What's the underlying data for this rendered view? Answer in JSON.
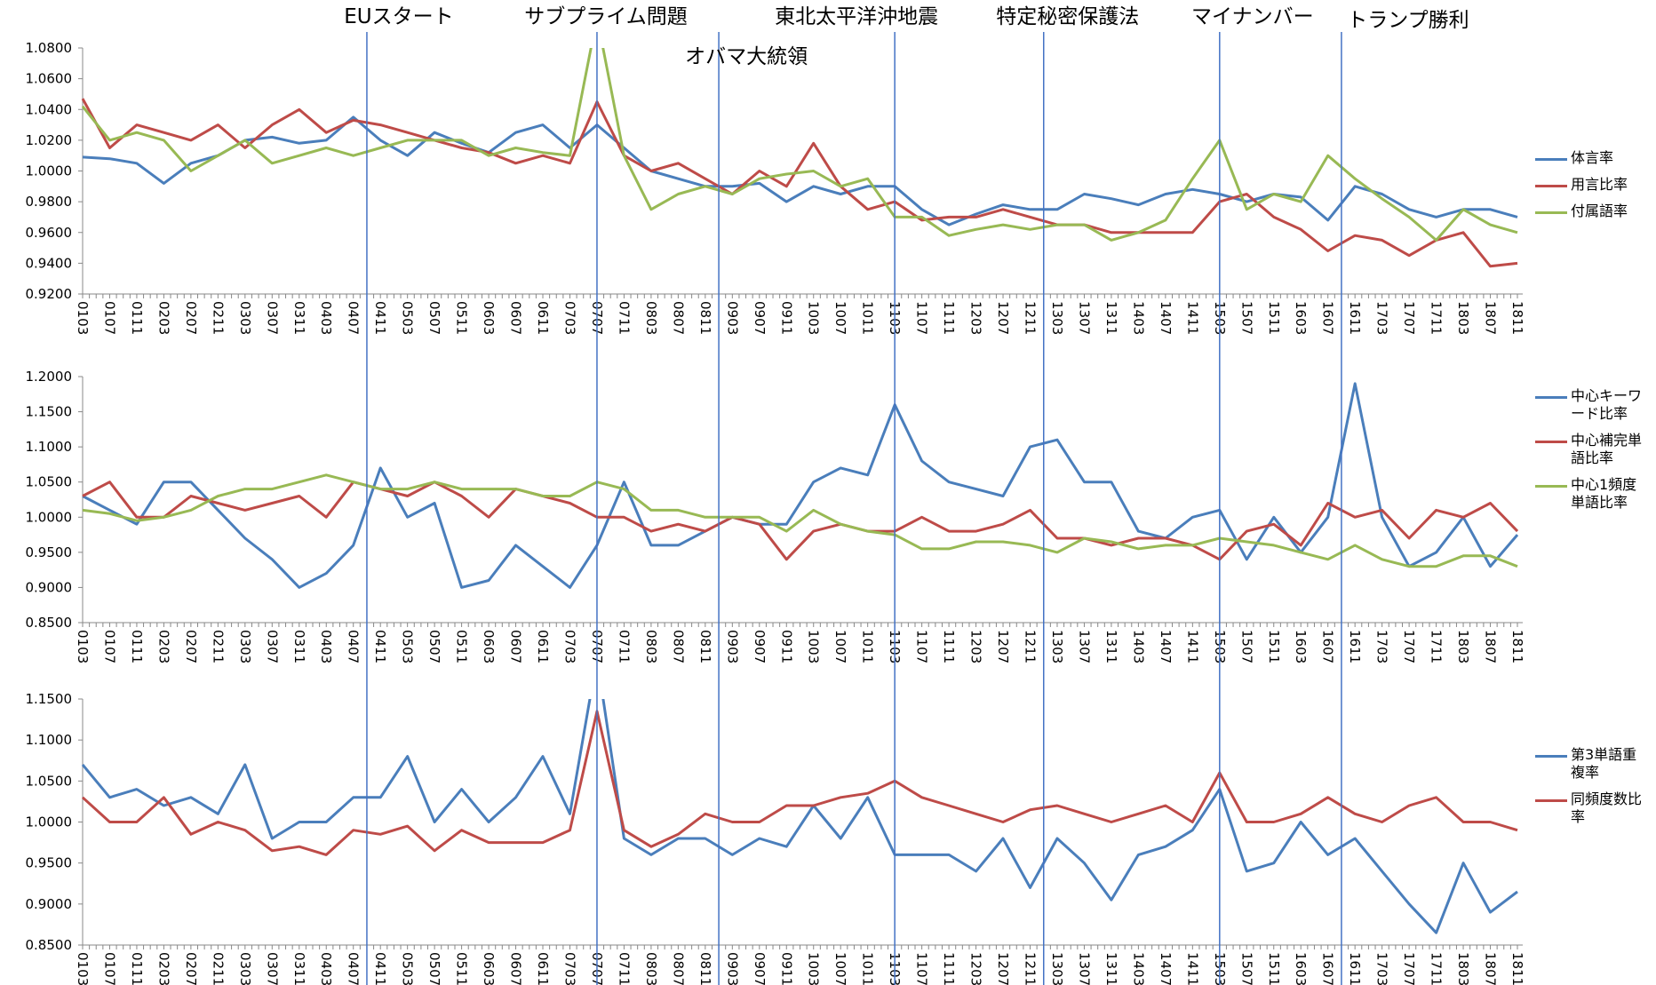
{
  "chart_data": [
    {
      "type": "line",
      "categories": [
        "0103",
        "0107",
        "0111",
        "0203",
        "0207",
        "0211",
        "0303",
        "0307",
        "0311",
        "0403",
        "0407",
        "0411",
        "0503",
        "0507",
        "0511",
        "0603",
        "0607",
        "0611",
        "0703",
        "0707",
        "0711",
        "0803",
        "0807",
        "0811",
        "0903",
        "0907",
        "0911",
        "1003",
        "1007",
        "1011",
        "1103",
        "1107",
        "1111",
        "1203",
        "1207",
        "1211",
        "1303",
        "1307",
        "1311",
        "1403",
        "1407",
        "1411",
        "1503",
        "1507",
        "1511",
        "1603",
        "1607",
        "1611",
        "1703",
        "1707",
        "1711",
        "1803",
        "1807",
        "1811"
      ],
      "ylim": [
        0.92,
        1.08
      ],
      "yticks": [
        {
          "value": 0.92,
          "label": "0.9200"
        },
        {
          "value": 0.94,
          "label": "0.9400"
        },
        {
          "value": 0.96,
          "label": "0.9600"
        },
        {
          "value": 0.98,
          "label": "0.9800"
        },
        {
          "value": 1.0,
          "label": "1.0000"
        },
        {
          "value": 1.02,
          "label": "1.0200"
        },
        {
          "value": 1.04,
          "label": "1.0400"
        },
        {
          "value": 1.06,
          "label": "1.0600"
        },
        {
          "value": 1.08,
          "label": "1.0800"
        }
      ],
      "grid": false,
      "series": [
        {
          "name": "体言率",
          "color": "#4a7ebb",
          "values": [
            1.009,
            1.008,
            1.005,
            0.992,
            1.005,
            1.01,
            1.02,
            1.022,
            1.018,
            1.02,
            1.035,
            1.02,
            1.01,
            1.025,
            1.018,
            1.012,
            1.025,
            1.03,
            1.015,
            1.03,
            1.015,
            1.0,
            0.995,
            0.99,
            0.99,
            0.992,
            0.98,
            0.99,
            0.985,
            0.99,
            0.99,
            0.975,
            0.965,
            0.972,
            0.978,
            0.975,
            0.975,
            0.985,
            0.982,
            0.978,
            0.985,
            0.988,
            0.985,
            0.98,
            0.985,
            0.983,
            0.968,
            0.99,
            0.985,
            0.975,
            0.97,
            0.975,
            0.975,
            0.97
          ]
        },
        {
          "name": "用言比率",
          "color": "#be4b48",
          "values": [
            1.047,
            1.015,
            1.03,
            1.025,
            1.02,
            1.03,
            1.015,
            1.03,
            1.04,
            1.025,
            1.033,
            1.03,
            1.025,
            1.02,
            1.015,
            1.012,
            1.005,
            1.01,
            1.005,
            1.045,
            1.01,
            1.0,
            1.005,
            0.995,
            0.985,
            1.0,
            0.99,
            1.018,
            0.99,
            0.975,
            0.98,
            0.968,
            0.97,
            0.97,
            0.975,
            0.97,
            0.965,
            0.965,
            0.96,
            0.96,
            0.96,
            0.96,
            0.98,
            0.985,
            0.97,
            0.962,
            0.948,
            0.958,
            0.955,
            0.945,
            0.955,
            0.96,
            0.938,
            0.94
          ]
        },
        {
          "name": "付属語率",
          "color": "#98b954",
          "values": [
            1.042,
            1.02,
            1.025,
            1.02,
            1.0,
            1.01,
            1.02,
            1.005,
            1.01,
            1.015,
            1.01,
            1.015,
            1.02,
            1.02,
            1.02,
            1.01,
            1.015,
            1.012,
            1.01,
            1.1,
            1.01,
            0.975,
            0.985,
            0.99,
            0.985,
            0.995,
            0.998,
            1.0,
            0.99,
            0.995,
            0.97,
            0.97,
            0.958,
            0.962,
            0.965,
            0.962,
            0.965,
            0.965,
            0.955,
            0.96,
            0.968,
            0.995,
            1.02,
            0.975,
            0.985,
            0.98,
            1.01,
            0.995,
            0.982,
            0.97,
            0.955,
            0.975,
            0.965,
            0.96
          ]
        }
      ]
    },
    {
      "type": "line",
      "categories": [
        "0103",
        "0107",
        "0111",
        "0203",
        "0207",
        "0211",
        "0303",
        "0307",
        "0311",
        "0403",
        "0407",
        "0411",
        "0503",
        "0507",
        "0511",
        "0603",
        "0607",
        "0611",
        "0703",
        "0707",
        "0711",
        "0803",
        "0807",
        "0811",
        "0903",
        "0907",
        "0911",
        "1003",
        "1007",
        "1011",
        "1103",
        "1107",
        "1111",
        "1203",
        "1207",
        "1211",
        "1303",
        "1307",
        "1311",
        "1403",
        "1407",
        "1411",
        "1503",
        "1507",
        "1511",
        "1603",
        "1607",
        "1611",
        "1703",
        "1707",
        "1711",
        "1803",
        "1807",
        "1811"
      ],
      "ylim": [
        0.85,
        1.2
      ],
      "yticks": [
        {
          "value": 0.85,
          "label": "0.8500"
        },
        {
          "value": 0.9,
          "label": "0.9000"
        },
        {
          "value": 0.95,
          "label": "0.9500"
        },
        {
          "value": 1.0,
          "label": "1.0000"
        },
        {
          "value": 1.05,
          "label": "1.0500"
        },
        {
          "value": 1.1,
          "label": "1.1000"
        },
        {
          "value": 1.15,
          "label": "1.1500"
        },
        {
          "value": 1.2,
          "label": "1.2000"
        }
      ],
      "grid": false,
      "series": [
        {
          "name": "中心キーワード比率",
          "color": "#4a7ebb",
          "values": [
            1.03,
            1.01,
            0.99,
            1.05,
            1.05,
            1.01,
            0.97,
            0.94,
            0.9,
            0.92,
            0.96,
            1.07,
            1.0,
            1.02,
            0.9,
            0.91,
            0.96,
            0.93,
            0.9,
            0.96,
            1.05,
            0.96,
            0.96,
            0.98,
            1.0,
            0.99,
            0.99,
            1.05,
            1.07,
            1.06,
            1.16,
            1.08,
            1.05,
            1.04,
            1.03,
            1.1,
            1.11,
            1.05,
            1.05,
            0.98,
            0.97,
            1.0,
            1.01,
            0.94,
            1.0,
            0.95,
            1.0,
            1.19,
            1.0,
            0.93,
            0.95,
            1.0,
            0.93,
            0.975
          ]
        },
        {
          "name": "中心補完単語比率",
          "color": "#be4b48",
          "values": [
            1.03,
            1.05,
            1.0,
            1.0,
            1.03,
            1.02,
            1.01,
            1.02,
            1.03,
            1.0,
            1.05,
            1.04,
            1.03,
            1.05,
            1.03,
            1.0,
            1.04,
            1.03,
            1.02,
            1.0,
            1.0,
            0.98,
            0.99,
            0.98,
            1.0,
            0.99,
            0.94,
            0.98,
            0.99,
            0.98,
            0.98,
            1.0,
            0.98,
            0.98,
            0.99,
            1.01,
            0.97,
            0.97,
            0.96,
            0.97,
            0.97,
            0.96,
            0.94,
            0.98,
            0.99,
            0.96,
            1.02,
            1.0,
            1.01,
            0.97,
            1.01,
            1.0,
            1.02,
            0.98
          ]
        },
        {
          "name": "中心1頻度単語比率",
          "color": "#98b954",
          "values": [
            1.01,
            1.005,
            0.995,
            1.0,
            1.01,
            1.03,
            1.04,
            1.04,
            1.05,
            1.06,
            1.05,
            1.04,
            1.04,
            1.05,
            1.04,
            1.04,
            1.04,
            1.03,
            1.03,
            1.05,
            1.04,
            1.01,
            1.01,
            1.0,
            1.0,
            1.0,
            0.98,
            1.01,
            0.99,
            0.98,
            0.975,
            0.955,
            0.955,
            0.965,
            0.965,
            0.96,
            0.95,
            0.97,
            0.965,
            0.955,
            0.96,
            0.96,
            0.97,
            0.965,
            0.96,
            0.95,
            0.94,
            0.96,
            0.94,
            0.93,
            0.93,
            0.945,
            0.945,
            0.93
          ]
        }
      ]
    },
    {
      "type": "line",
      "categories": [
        "0103",
        "0107",
        "0111",
        "0203",
        "0207",
        "0211",
        "0303",
        "0307",
        "0311",
        "0403",
        "0407",
        "0411",
        "0503",
        "0507",
        "0511",
        "0603",
        "0607",
        "0611",
        "0703",
        "0707",
        "0711",
        "0803",
        "0807",
        "0811",
        "0903",
        "0907",
        "0911",
        "1003",
        "1007",
        "1011",
        "1103",
        "1107",
        "1111",
        "1203",
        "1207",
        "1211",
        "1303",
        "1307",
        "1311",
        "1403",
        "1407",
        "1411",
        "1503",
        "1507",
        "1511",
        "1603",
        "1607",
        "1611",
        "1703",
        "1707",
        "1711",
        "1803",
        "1807",
        "1811"
      ],
      "ylim": [
        0.85,
        1.15
      ],
      "yticks": [
        {
          "value": 0.85,
          "label": "0.8500"
        },
        {
          "value": 0.9,
          "label": "0.9000"
        },
        {
          "value": 0.95,
          "label": "0.9500"
        },
        {
          "value": 1.0,
          "label": "1.0000"
        },
        {
          "value": 1.05,
          "label": "1.0500"
        },
        {
          "value": 1.1,
          "label": "1.1000"
        },
        {
          "value": 1.15,
          "label": "1.1500"
        }
      ],
      "grid": false,
      "series": [
        {
          "name": "第3単語重複率",
          "color": "#4a7ebb",
          "values": [
            1.07,
            1.03,
            1.04,
            1.02,
            1.03,
            1.01,
            1.07,
            0.98,
            1.0,
            1.0,
            1.03,
            1.03,
            1.08,
            1.0,
            1.04,
            1.0,
            1.03,
            1.08,
            1.01,
            1.2,
            0.98,
            0.96,
            0.98,
            0.98,
            0.96,
            0.98,
            0.97,
            1.02,
            0.98,
            1.03,
            0.96,
            0.96,
            0.96,
            0.94,
            0.98,
            0.92,
            0.98,
            0.95,
            0.905,
            0.96,
            0.97,
            0.99,
            1.04,
            0.94,
            0.95,
            1.0,
            0.96,
            0.98,
            0.94,
            0.9,
            0.865,
            0.95,
            0.89,
            0.915
          ]
        },
        {
          "name": "同頻度数比率",
          "color": "#be4b48",
          "values": [
            1.03,
            1.0,
            1.0,
            1.03,
            0.985,
            1.0,
            0.99,
            0.965,
            0.97,
            0.96,
            0.99,
            0.985,
            0.995,
            0.965,
            0.99,
            0.975,
            0.975,
            0.975,
            0.99,
            1.135,
            0.99,
            0.97,
            0.985,
            1.01,
            1.0,
            1.0,
            1.02,
            1.02,
            1.03,
            1.035,
            1.05,
            1.03,
            1.02,
            1.01,
            1.0,
            1.015,
            1.02,
            1.01,
            1.0,
            1.01,
            1.02,
            1.0,
            1.06,
            1.0,
            1.0,
            1.01,
            1.03,
            1.01,
            1.0,
            1.02,
            1.03,
            1.0,
            1.0,
            0.99
          ]
        }
      ]
    }
  ],
  "events": [
    {
      "label": "EUスタート",
      "x": 10.5
    },
    {
      "label": "サブプライム問題",
      "x": 19
    },
    {
      "label": "オバマ大統領",
      "x": 23.5
    },
    {
      "label": "東北太平洋沖地震",
      "x": 30
    },
    {
      "label": "特定秘密保護法",
      "x": 35.5
    },
    {
      "label": "マイナンバー",
      "x": 42
    },
    {
      "label": "トランプ勝利",
      "x": 46.5
    }
  ]
}
